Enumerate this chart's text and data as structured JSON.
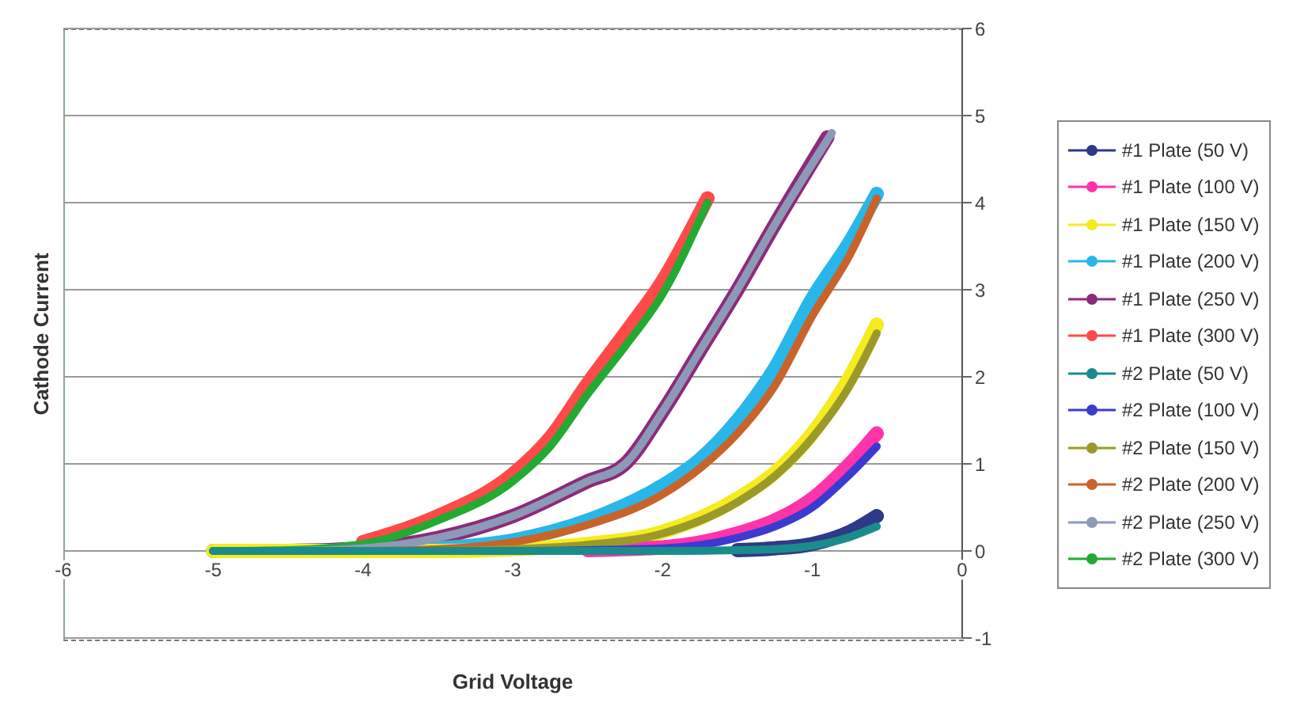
{
  "chart_data": {
    "type": "line",
    "xlabel": "Grid Voltage",
    "ylabel": "Cathode Current",
    "xlim": [
      -6,
      0
    ],
    "xticks": [
      -6,
      -5,
      -4,
      -3,
      -2,
      -1,
      0
    ],
    "ylim": [
      -1,
      6
    ],
    "yticks": [
      -1,
      0,
      1,
      2,
      3,
      4,
      5,
      6
    ],
    "grid": "y",
    "legend": "right",
    "series": [
      {
        "name": "#1 Plate (50 V)",
        "color": "#2e3a87",
        "x": [
          -1.5,
          -1.25,
          -1,
          -0.75,
          -0.57
        ],
        "values": [
          0.01,
          0.03,
          0.08,
          0.22,
          0.4
        ]
      },
      {
        "name": "#1 Plate (100 V)",
        "color": "#ff33aa",
        "x": [
          -2.5,
          -2,
          -1.5,
          -1.25,
          -1,
          -0.75,
          -0.57
        ],
        "values": [
          0.01,
          0.04,
          0.2,
          0.35,
          0.6,
          1.0,
          1.35
        ]
      },
      {
        "name": "#1 Plate (150 V)",
        "color": "#f5eb1e",
        "x": [
          -5,
          -3.5,
          -3,
          -2.5,
          -2,
          -1.5,
          -1.25,
          -1,
          -0.75,
          -0.57
        ],
        "values": [
          0,
          0,
          0.02,
          0.08,
          0.22,
          0.6,
          0.9,
          1.35,
          2.0,
          2.6
        ]
      },
      {
        "name": "#1 Plate (200 V)",
        "color": "#29b6e8",
        "x": [
          -5,
          -4,
          -3.5,
          -3,
          -2.5,
          -2,
          -1.75,
          -1.5,
          -1.25,
          -1,
          -0.75,
          -0.57
        ],
        "values": [
          0,
          0,
          0.03,
          0.12,
          0.35,
          0.75,
          1.05,
          1.5,
          2.1,
          2.9,
          3.55,
          4.1
        ]
      },
      {
        "name": "#1 Plate (250 V)",
        "color": "#8e2a7a",
        "x": [
          -5,
          -4.5,
          -4,
          -3.5,
          -3,
          -2.5,
          -2.25,
          -2,
          -1.75,
          -1.5,
          -1.25,
          -0.9
        ],
        "values": [
          0,
          0,
          0.03,
          0.15,
          0.4,
          0.8,
          1.0,
          1.6,
          2.3,
          3.0,
          3.75,
          4.75
        ]
      },
      {
        "name": "#1 Plate (300 V)",
        "color": "#ff4a4a",
        "x": [
          -4,
          -3.5,
          -3,
          -2.75,
          -2.5,
          -2.25,
          -2,
          -1.7
        ],
        "values": [
          0.1,
          0.4,
          0.88,
          1.3,
          1.92,
          2.5,
          3.1,
          4.05
        ]
      },
      {
        "name": "#2 Plate (50 V)",
        "color": "#1a8c8c",
        "x": [
          -5,
          -2,
          -1.5,
          -1.25,
          -1,
          -0.75,
          -0.57
        ],
        "values": [
          0,
          0,
          0.01,
          0.02,
          0.06,
          0.16,
          0.28
        ]
      },
      {
        "name": "#2 Plate (100 V)",
        "color": "#3b3bd0",
        "x": [
          -5,
          -3,
          -2.5,
          -2,
          -1.5,
          -1.25,
          -1,
          -0.75,
          -0.57
        ],
        "values": [
          0,
          0,
          0.01,
          0.03,
          0.15,
          0.28,
          0.5,
          0.88,
          1.2
        ]
      },
      {
        "name": "#2 Plate (150 V)",
        "color": "#9a9a2a",
        "x": [
          -5,
          -3.5,
          -3,
          -2.5,
          -2,
          -1.5,
          -1.25,
          -1,
          -0.75,
          -0.57
        ],
        "values": [
          0,
          0,
          0.02,
          0.07,
          0.2,
          0.56,
          0.86,
          1.3,
          1.9,
          2.5
        ]
      },
      {
        "name": "#2 Plate (200 V)",
        "color": "#c8642a",
        "x": [
          -5,
          -4,
          -3.5,
          -3,
          -2.5,
          -2,
          -1.75,
          -1.5,
          -1.25,
          -1,
          -0.75,
          -0.57
        ],
        "values": [
          0,
          0,
          0.02,
          0.1,
          0.3,
          0.65,
          0.95,
          1.35,
          1.9,
          2.7,
          3.4,
          4.05
        ]
      },
      {
        "name": "#2 Plate (250 V)",
        "color": "#8c9ab8",
        "x": [
          -5,
          -4.5,
          -4,
          -3.5,
          -3,
          -2.5,
          -2.25,
          -2,
          -1.75,
          -1.5,
          -1.25,
          -0.87
        ],
        "values": [
          0,
          0,
          0.03,
          0.15,
          0.4,
          0.8,
          1.0,
          1.6,
          2.3,
          3.0,
          3.75,
          4.8
        ]
      },
      {
        "name": "#2 Plate (300 V)",
        "color": "#22aa33",
        "x": [
          -5,
          -4.5,
          -4,
          -3.5,
          -3,
          -2.75,
          -2.5,
          -2.25,
          -2,
          -1.7
        ],
        "values": [
          0,
          0.01,
          0.08,
          0.35,
          0.8,
          1.2,
          1.8,
          2.35,
          2.95,
          4.0
        ]
      }
    ]
  }
}
